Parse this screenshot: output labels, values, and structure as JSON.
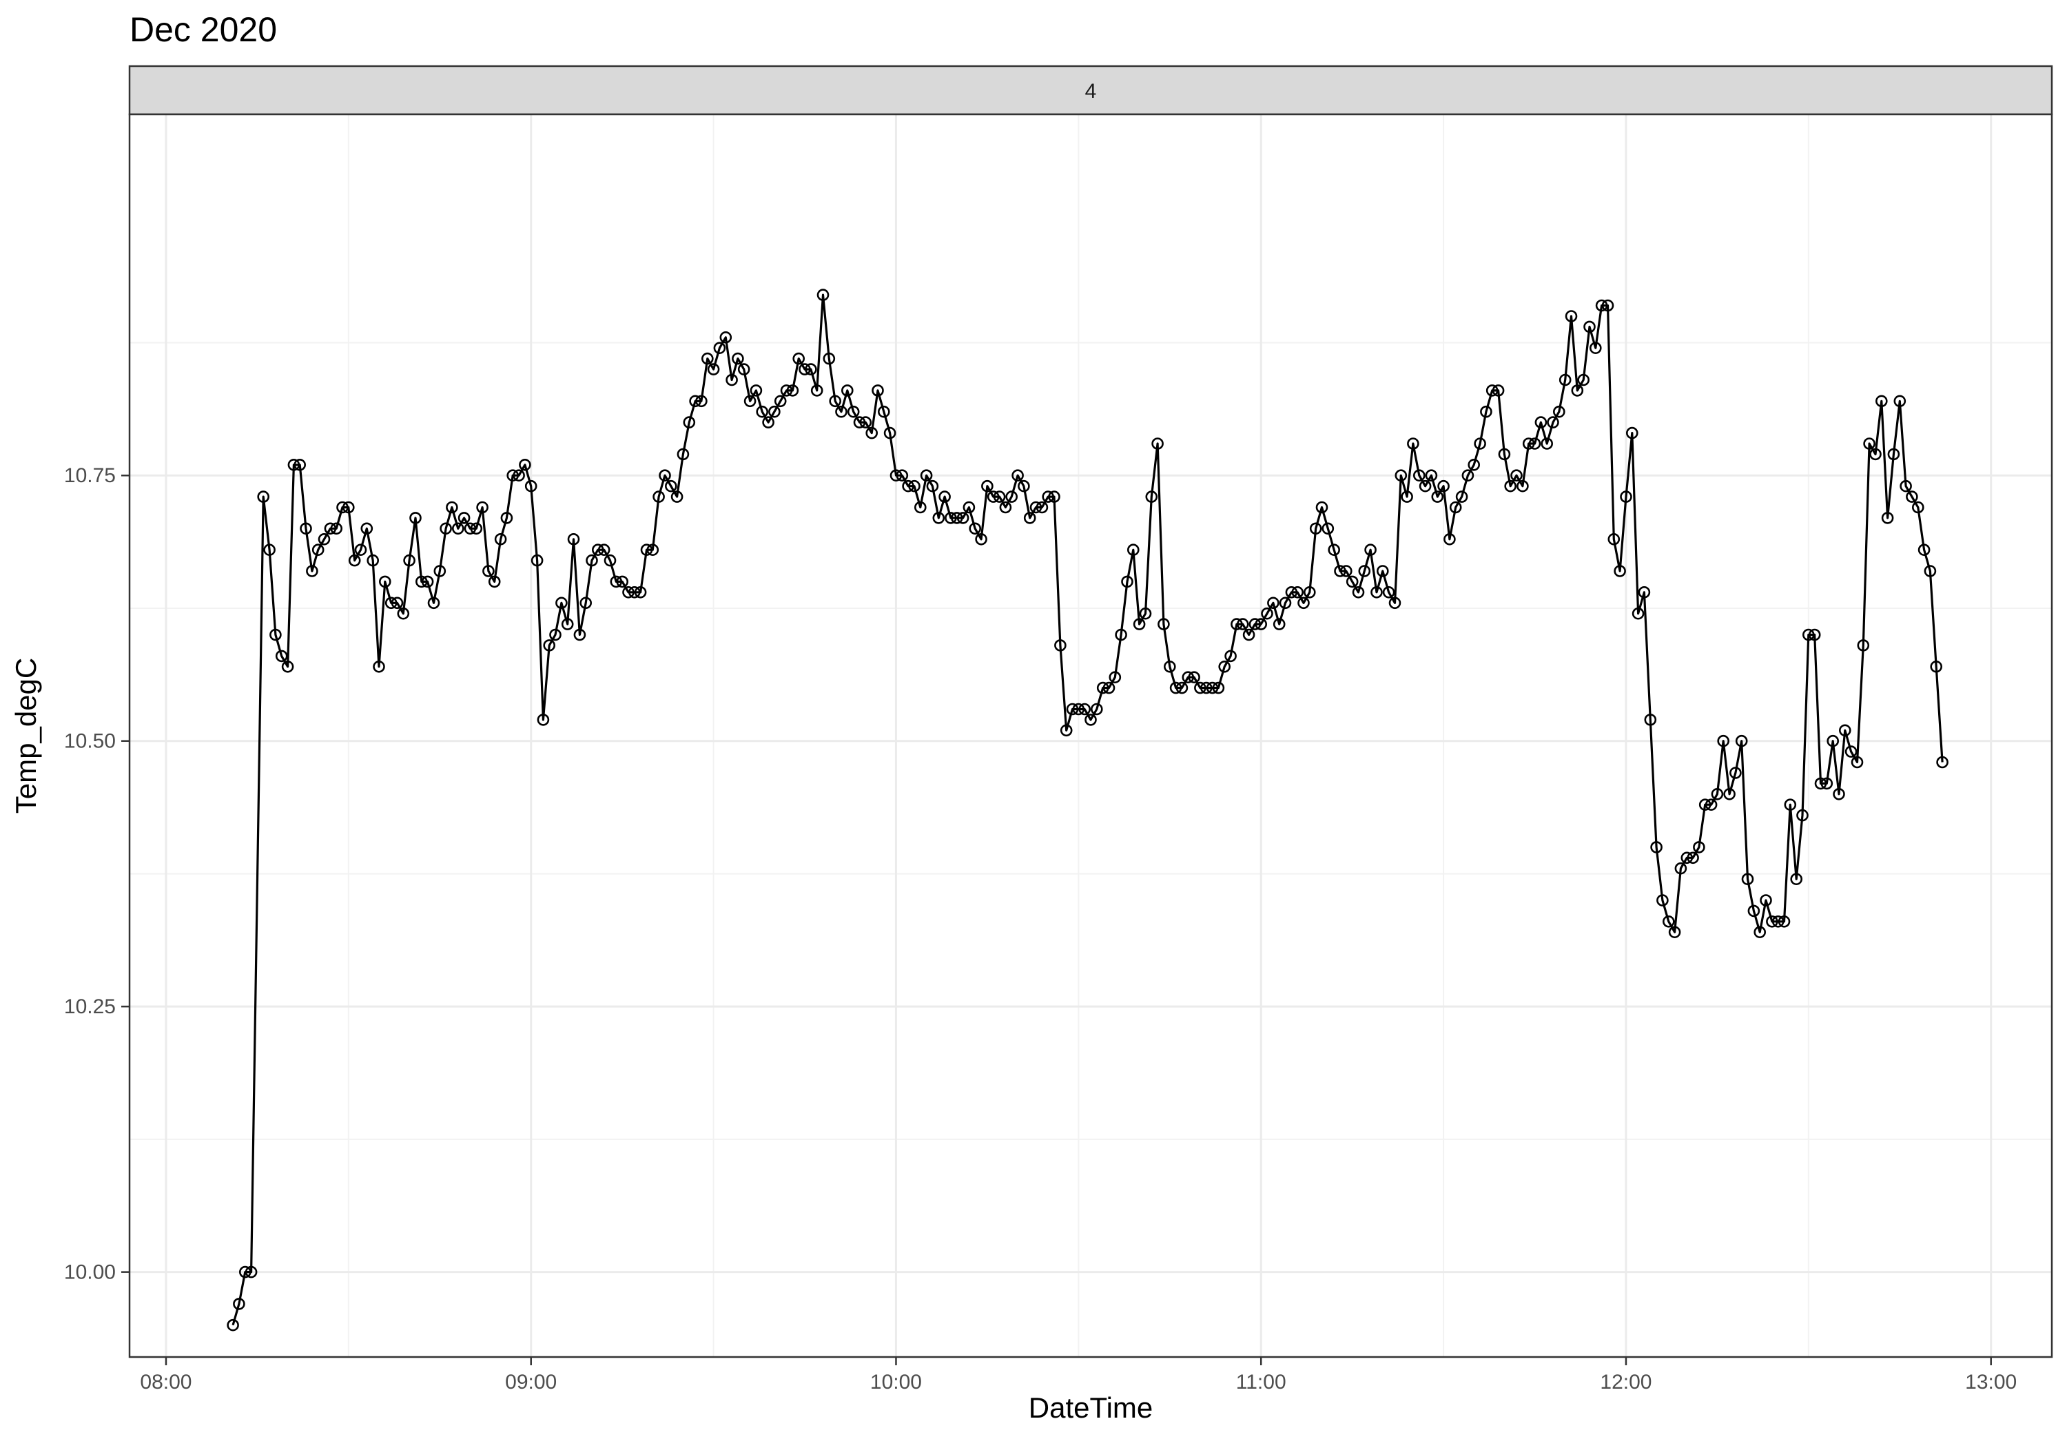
{
  "chart_data": {
    "type": "line",
    "title": "Dec 2020",
    "facet_label": "4",
    "xlabel": "DateTime",
    "ylabel": "Temp_degC",
    "x_tick_labels": [
      "08:00",
      "09:00",
      "10:00",
      "11:00",
      "12:00",
      "13:00"
    ],
    "y_tick_labels": [
      "10.00",
      "10.25",
      "10.50",
      "10.75"
    ],
    "x_range_minutes": [
      474,
      790
    ],
    "ylim": [
      9.92,
      11.09
    ],
    "grid": true,
    "markers": "open-circle",
    "line_color": "#000000",
    "series": [
      {
        "x_minutes": [
          491,
          492,
          493,
          494,
          496,
          497,
          498,
          499,
          500,
          501,
          502,
          503,
          504,
          505,
          506,
          507,
          508,
          509,
          510,
          511,
          512,
          513,
          514,
          515,
          516,
          517,
          518,
          519,
          520,
          521,
          522,
          523,
          524,
          525,
          526,
          527,
          528,
          529,
          530,
          531,
          532,
          533,
          534,
          535,
          536,
          537,
          538,
          539,
          540,
          541,
          542,
          543,
          544,
          545,
          546,
          547,
          548,
          549,
          550,
          551,
          552,
          553,
          554,
          555,
          556,
          557,
          558,
          559,
          560,
          561,
          562,
          563,
          564,
          565,
          566,
          567,
          568,
          569,
          570,
          571,
          572,
          573,
          574,
          575,
          576,
          577,
          578,
          579,
          580,
          581,
          582,
          583,
          584,
          585,
          586,
          587,
          588,
          589,
          590,
          591,
          592,
          593,
          594,
          595,
          596,
          597,
          598,
          599,
          600,
          601,
          602,
          603,
          604,
          605,
          606,
          607,
          608,
          609,
          610,
          611,
          612,
          613,
          614,
          615,
          616,
          617,
          618,
          619,
          620,
          621,
          622,
          623,
          624,
          625,
          626,
          627,
          628,
          629,
          630,
          631,
          632,
          633,
          634,
          635,
          636,
          637,
          638,
          639,
          640,
          641,
          642,
          643,
          644,
          645,
          646,
          647,
          648,
          649,
          650,
          651,
          652,
          653,
          654,
          655,
          656,
          657,
          658,
          659,
          660,
          661,
          662,
          663,
          664,
          665,
          666,
          667,
          668,
          669,
          670,
          671,
          672,
          673,
          674,
          675,
          676,
          677,
          678,
          679,
          680,
          681,
          682,
          683,
          684,
          685,
          686,
          687,
          688,
          689,
          690,
          691,
          692,
          693,
          694,
          695,
          696,
          697,
          698,
          699,
          700,
          701,
          702,
          703,
          704,
          705,
          706,
          707,
          708,
          709,
          710,
          711,
          712,
          713,
          714,
          715,
          716,
          717,
          718,
          719,
          720,
          721,
          722,
          723,
          724,
          725,
          726,
          727,
          728,
          729,
          730,
          731,
          732,
          733,
          734,
          735,
          736,
          737,
          738,
          739,
          740,
          741,
          742,
          743,
          744,
          745,
          746,
          747,
          748,
          749,
          750,
          751,
          752,
          753,
          754,
          755,
          756,
          757,
          758,
          759,
          760,
          761,
          762,
          763,
          764,
          765,
          766,
          767,
          768,
          769,
          770,
          771,
          772
        ],
        "values": [
          9.95,
          9.97,
          10.0,
          10.0,
          10.73,
          10.68,
          10.6,
          10.58,
          10.57,
          10.76,
          10.76,
          10.7,
          10.66,
          10.68,
          10.69,
          10.7,
          10.7,
          10.72,
          10.72,
          10.67,
          10.68,
          10.7,
          10.67,
          10.57,
          10.65,
          10.63,
          10.63,
          10.62,
          10.67,
          10.71,
          10.65,
          10.65,
          10.63,
          10.66,
          10.7,
          10.72,
          10.7,
          10.71,
          10.7,
          10.7,
          10.72,
          10.66,
          10.65,
          10.69,
          10.71,
          10.75,
          10.75,
          10.76,
          10.74,
          10.67,
          10.52,
          10.59,
          10.6,
          10.63,
          10.61,
          10.69,
          10.6,
          10.63,
          10.67,
          10.68,
          10.68,
          10.67,
          10.65,
          10.65,
          10.64,
          10.64,
          10.64,
          10.68,
          10.68,
          10.73,
          10.75,
          10.74,
          10.73,
          10.77,
          10.8,
          10.82,
          10.82,
          10.86,
          10.85,
          10.87,
          10.88,
          10.84,
          10.86,
          10.85,
          10.82,
          10.83,
          10.81,
          10.8,
          10.81,
          10.82,
          10.83,
          10.83,
          10.86,
          10.85,
          10.85,
          10.83,
          10.92,
          10.86,
          10.82,
          10.81,
          10.83,
          10.81,
          10.8,
          10.8,
          10.79,
          10.83,
          10.81,
          10.79,
          10.75,
          10.75,
          10.74,
          10.74,
          10.72,
          10.75,
          10.74,
          10.71,
          10.73,
          10.71,
          10.71,
          10.71,
          10.72,
          10.7,
          10.69,
          10.74,
          10.73,
          10.73,
          10.72,
          10.73,
          10.75,
          10.74,
          10.71,
          10.72,
          10.72,
          10.73,
          10.73,
          10.59,
          10.51,
          10.53,
          10.53,
          10.53,
          10.52,
          10.53,
          10.55,
          10.55,
          10.56,
          10.6,
          10.65,
          10.68,
          10.61,
          10.62,
          10.73,
          10.78,
          10.61,
          10.57,
          10.55,
          10.55,
          10.56,
          10.56,
          10.55,
          10.55,
          10.55,
          10.55,
          10.57,
          10.58,
          10.61,
          10.61,
          10.6,
          10.61,
          10.61,
          10.62,
          10.63,
          10.61,
          10.63,
          10.64,
          10.64,
          10.63,
          10.64,
          10.7,
          10.72,
          10.7,
          10.68,
          10.66,
          10.66,
          10.65,
          10.64,
          10.66,
          10.68,
          10.64,
          10.66,
          10.64,
          10.63,
          10.75,
          10.73,
          10.78,
          10.75,
          10.74,
          10.75,
          10.73,
          10.74,
          10.69,
          10.72,
          10.73,
          10.75,
          10.76,
          10.78,
          10.81,
          10.83,
          10.83,
          10.77,
          10.74,
          10.75,
          10.74,
          10.78,
          10.78,
          10.8,
          10.78,
          10.8,
          10.81,
          10.84,
          10.9,
          10.83,
          10.84,
          10.89,
          10.87,
          10.91,
          10.91,
          10.69,
          10.66,
          10.73,
          10.79,
          10.62,
          10.64,
          10.52,
          10.4,
          10.35,
          10.33,
          10.32,
          10.38,
          10.39,
          10.39,
          10.4,
          10.44,
          10.44,
          10.45,
          10.5,
          10.45,
          10.47,
          10.5,
          10.37,
          10.34,
          10.32,
          10.35,
          10.33,
          10.33,
          10.33,
          10.44,
          10.37,
          10.43,
          10.6,
          10.6,
          10.46,
          10.46,
          10.5,
          10.45,
          10.51,
          10.49,
          10.48,
          10.59,
          10.78,
          10.77,
          10.82,
          10.71,
          10.77,
          10.82,
          10.74,
          10.73,
          10.72,
          10.68,
          10.66,
          10.57,
          10.48
        ]
      }
    ]
  }
}
